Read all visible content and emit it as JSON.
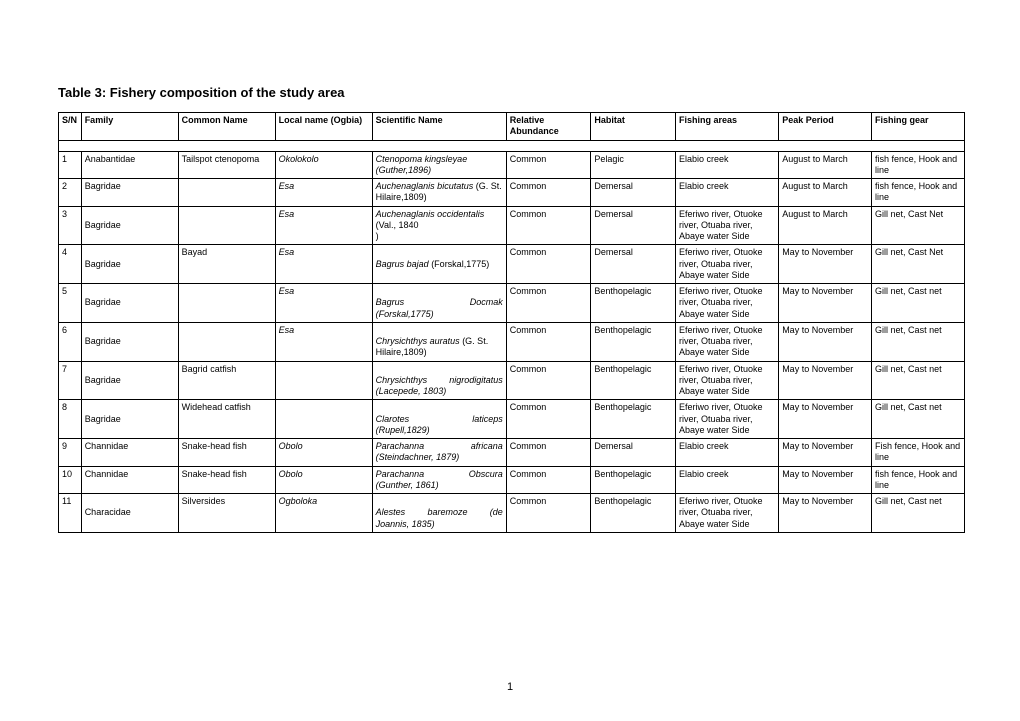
{
  "title": "Table 3: Fishery composition of the study area",
  "pageNumber": "1",
  "headers": {
    "sn": "S/N",
    "family": "Family",
    "common": "Common Name",
    "local": "Local name (Ogbia)",
    "scientific": "Scientific Name",
    "relative": "Relative Abundance",
    "habitat": "Habitat",
    "fishingAreas": "Fishing areas",
    "peak": "Peak Period",
    "gear": "Fishing gear"
  },
  "rows": [
    {
      "sn": "1",
      "family": "Anabantidae",
      "common": "Tailspot ctenopoma",
      "local": "Okolokolo",
      "sciHtml": "<em>Ctenopoma kingsleyae (Guther,1896)</em>",
      "rel": "Common",
      "hab": "Pelagic",
      "areas": "Elabio creek",
      "peak": "August to March",
      "gear": "fish fence, Hook and line"
    },
    {
      "sn": "2",
      "family": "Bagridae",
      "common": "",
      "local": "Esa",
      "sciHtml": "<em>Auchenaglanis bicutatus</em> (G. St. Hilaire,1809)",
      "rel": "Common",
      "hab": "Demersal",
      "areas": "Elabio creek",
      "peak": "August to March",
      "gear": "fish fence, Hook and line"
    },
    {
      "sn": "3",
      "family": "\nBagridae",
      "common": "",
      "local": "Esa",
      "sciHtml": "<em>Auchenaglanis occidentalis</em> (Val., 1840<br>)",
      "rel": "Common",
      "hab": "Demersal",
      "areas": "Eferiwo river, Otuoke river, Otuaba river, Abaye water Side",
      "peak": "August to March",
      "gear": "Gill net, Cast Net"
    },
    {
      "sn": "4",
      "family": "\nBagridae",
      "common": "Bayad",
      "local": "Esa",
      "sciHtml": "<br><em>Bagrus bajad </em>(Forskal,1775)",
      "rel": "Common",
      "hab": "Demersal",
      "areas": "Eferiwo river, Otuoke river, Otuaba river, Abaye water Side",
      "peak": "May to November",
      "gear": "Gill net, Cast Net"
    },
    {
      "sn": "5",
      "family": "\nBagridae",
      "common": "",
      "local": "Esa",
      "sciHtml": "<br><span class=\"sci-justify\" style=\"display:block\">Bagrus Docmak</span><em>(Forskal,1775)</em>",
      "rel": "Common",
      "hab": "Benthopelagic",
      "areas": "Eferiwo river, Otuoke river, Otuaba river, Abaye water Side",
      "peak": "May to November",
      "gear": "Gill net,  Cast net"
    },
    {
      "sn": "6",
      "family": "\nBagridae",
      "common": "",
      "local": "Esa",
      "sciHtml": "<br><em>Chrysichthys auratus </em>(G. St. Hilaire,1809)",
      "rel": "Common",
      "hab": "Benthopelagic",
      "areas": "Eferiwo river, Otuoke river, Otuaba river, Abaye water Side",
      "peak": "May to November",
      "gear": "Gill net,  Cast net"
    },
    {
      "sn": "7",
      "family": "\nBagridae",
      "common": "Bagrid catfish",
      "local": "",
      "sciHtml": "<br><span class=\"sci-justify\" style=\"display:block\">Chrysichthys nigrodigitatus</span><em>(Lacepede, 1803)</em>",
      "rel": "Common",
      "hab": "Benthopelagic",
      "areas": "Eferiwo river, Otuoke river, Otuaba river, Abaye water Side",
      "peak": "May to November",
      "gear": "Gill net, Cast net"
    },
    {
      "sn": "8",
      "family": "\nBagridae",
      "common": "Widehead catfish",
      "local": "",
      "sciHtml": "<br><span class=\"sci-justify\" style=\"display:block\">Clarotes laticeps</span><em>(Rupell,1829)</em>",
      "rel": "Common",
      "hab": "Benthopelagic",
      "areas": "Eferiwo river, Otuoke river, Otuaba river, Abaye water Side",
      "peak": "May to November",
      "gear": "Gill net,  Cast net"
    },
    {
      "sn": "9",
      "family": "Channidae",
      "common": "Snake-head fish",
      "local": "Obolo",
      "sciHtml": "<span class=\"sci-justify\" style=\"display:block\">Parachanna africana</span><em>(Steindachner, 1879)</em>",
      "rel": "Common",
      "hab": "Demersal",
      "areas": "Elabio creek",
      "peak": "May to November",
      "gear": "Fish fence, Hook and line"
    },
    {
      "sn": "10",
      "family": "Channidae",
      "common": "Snake-head fish",
      "local": "Obolo",
      "sciHtml": "<span class=\"sci-justify\" style=\"display:block\">Parachanna Obscura</span><em>(Gunther, 1861)</em>",
      "rel": "Common",
      "hab": "Benthopelagic",
      "areas": "Elabio creek",
      "peak": "May to November",
      "gear": "fish fence, Hook and line"
    },
    {
      "sn": "11",
      "family": "\nCharacidae",
      "common": "Silversides",
      "local": "Ogboloka",
      "sciHtml": "<br><span class=\"sci-justify\" style=\"display:block\">Alestes baremoze (de</span><em>Joannis, 1835)</em>",
      "rel": "Common",
      "hab": "Benthopelagic",
      "areas": "Eferiwo river, Otuoke river, Otuaba river, Abaye water Side",
      "peak": "May to November",
      "gear": "Gill net, Cast net"
    }
  ]
}
